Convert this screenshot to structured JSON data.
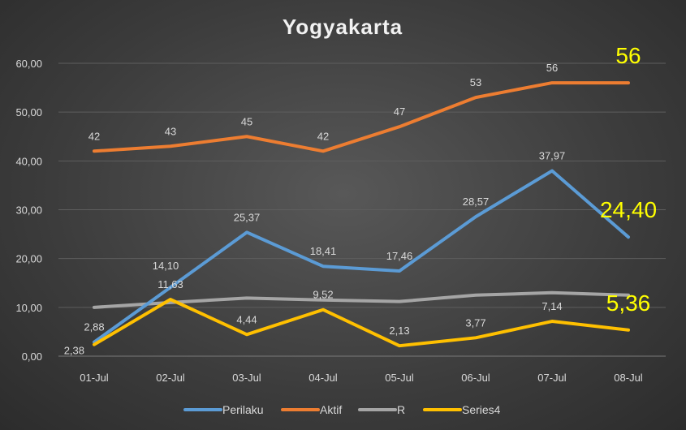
{
  "chart_data": {
    "type": "line",
    "title": "Yogyakarta",
    "xlabel": "",
    "ylabel": "",
    "ylim": [
      0,
      60
    ],
    "yticks": [
      "0,00",
      "10,00",
      "20,00",
      "30,00",
      "40,00",
      "50,00",
      "60,00"
    ],
    "categories": [
      "01-Jul",
      "02-Jul",
      "03-Jul",
      "04-Jul",
      "05-Jul",
      "06-Jul",
      "07-Jul",
      "08-Jul"
    ],
    "grid": true,
    "legend": "bottom",
    "series": [
      {
        "name": "Perilaku",
        "color": "#5b9bd5",
        "values": [
          2.88,
          14.1,
          25.37,
          18.41,
          17.46,
          28.57,
          37.97,
          24.4
        ],
        "labels": [
          "2,88",
          "14,10",
          "25,37",
          "18,41",
          "17,46",
          "28,57",
          "37,97",
          "24,40"
        ]
      },
      {
        "name": "Aktif",
        "color": "#ed7d31",
        "values": [
          42,
          43,
          45,
          42,
          47,
          53,
          56,
          56
        ],
        "labels": [
          "42",
          "43",
          "45",
          "42",
          "47",
          "53",
          "56",
          "56"
        ]
      },
      {
        "name": "R",
        "color": "#a5a5a5",
        "values": [
          10.0,
          11.0,
          11.9,
          11.5,
          11.2,
          12.5,
          13.0,
          12.5
        ],
        "labels": [
          null,
          null,
          null,
          null,
          null,
          null,
          null,
          null
        ]
      },
      {
        "name": "Series4",
        "color": "#ffc000",
        "values": [
          2.38,
          11.63,
          4.44,
          9.52,
          2.13,
          3.77,
          7.14,
          5.36
        ],
        "labels": [
          "2,38",
          "11,63",
          "4,44",
          "9,52",
          "2,13",
          "3,77",
          "7,14",
          "5,36"
        ]
      }
    ],
    "highlighted_last_label_color": "#ffff00"
  }
}
